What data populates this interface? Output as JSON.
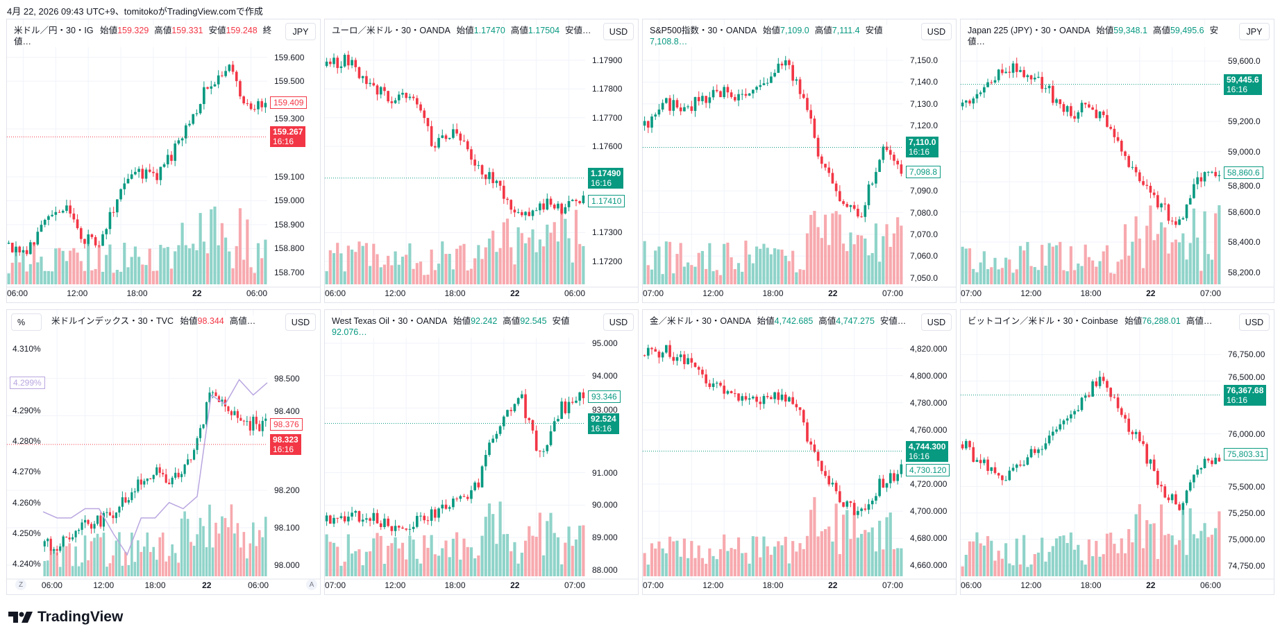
{
  "caption": "4月 22, 2026 09:43 UTC+9、tomitokoがTradingView.comで作成",
  "logo": "TradingView",
  "colors": {
    "up": "#089981",
    "down": "#f23645",
    "up_vol": "#8fd3c9",
    "down_vol": "#f7a9ae",
    "yield_line": "#b9a6e0",
    "grid": "#f0f3fa"
  },
  "panels": [
    {
      "title": "米ドル／円・30・IG",
      "fields": [
        [
          "始値",
          "159.329"
        ],
        [
          "高値",
          "159.331"
        ],
        [
          "安値",
          "159.248"
        ],
        [
          "終値…",
          ""
        ]
      ],
      "value_color": "#f23645",
      "currency": "JPY",
      "ticks": [
        "159.600",
        "159.500",
        "159.300",
        "159.100",
        "159.000",
        "158.900",
        "158.800",
        "158.700"
      ],
      "ylim": [
        158.65,
        159.66
      ],
      "times": [
        "06:00",
        "12:00",
        "18:00",
        "22",
        "06:00"
      ],
      "last": {
        "price": "159.267",
        "time": "16:16",
        "color": "#f23645"
      },
      "prev": {
        "price": "159.409",
        "color": "#f23645"
      },
      "trend": [
        158.82,
        158.78,
        158.95,
        158.98,
        158.85,
        158.8,
        159.05,
        159.12,
        159.1,
        159.2,
        159.35,
        159.5,
        159.55,
        159.38,
        159.4
      ]
    },
    {
      "title": "ユーロ／米ドル・30・OANDA",
      "fields": [
        [
          "始値",
          "1.17470"
        ],
        [
          "高値",
          "1.17504"
        ],
        [
          "安値…",
          ""
        ]
      ],
      "value_color": "#089981",
      "currency": "USD",
      "ticks": [
        "1.17900",
        "1.17800",
        "1.17700",
        "1.17600",
        "1.17300",
        "1.17200"
      ],
      "ylim": [
        1.1712,
        1.1796
      ],
      "times": [
        "06:00",
        "12:00",
        "18:00",
        "22",
        "06:00"
      ],
      "last": {
        "price": "1.17490",
        "time": "16:16",
        "color": "#089981"
      },
      "prev": {
        "price": "1.17410",
        "color": "#089981"
      },
      "trend": [
        1.1788,
        1.179,
        1.1782,
        1.1775,
        1.1778,
        1.176,
        1.1765,
        1.1755,
        1.1745,
        1.1735,
        1.174,
        1.1738,
        1.1741
      ]
    },
    {
      "title": "S&P500指数・30・OANDA",
      "fields": [
        [
          "始値",
          "7,109.0"
        ],
        [
          "高値",
          "7,111.4"
        ],
        [
          "安値",
          "7,108.8…"
        ]
      ],
      "value_color": "#089981",
      "currency": "USD",
      "ticks": [
        "7,150.0",
        "7,140.0",
        "7,130.0",
        "7,120.0",
        "7,090.0",
        "7,080.0",
        "7,070.0",
        "7,060.0",
        "7,050.0"
      ],
      "ylim": [
        7047,
        7158
      ],
      "times": [
        "07:00",
        "12:00",
        "18:00",
        "22",
        "07:00"
      ],
      "last": {
        "price": "7,110.0",
        "time": "16:16",
        "color": "#089981"
      },
      "prev": {
        "price": "7,098.8",
        "color": "#089981"
      },
      "trend": [
        7120,
        7130,
        7128,
        7132,
        7135,
        7134,
        7140,
        7150,
        7135,
        7100,
        7085,
        7080,
        7108,
        7099
      ]
    },
    {
      "title": "Japan 225 (JPY)・30・OANDA",
      "fields": [
        [
          "始値",
          "59,348.1"
        ],
        [
          "高値",
          "59,495.6"
        ],
        [
          "安値…",
          ""
        ]
      ],
      "value_color": "#089981",
      "currency": "JPY",
      "ticks": [
        "59,600.0",
        "59,200.0",
        "59,000.0",
        "58,800.0",
        "58,600.0",
        "58,400.0",
        "58,200.0"
      ],
      "ylim": [
        58120,
        59720
      ],
      "times": [
        "07:00",
        "12:00",
        "18:00",
        "22",
        "07:00"
      ],
      "last": {
        "price": "59,445.6",
        "time": "16:16",
        "color": "#089981"
      },
      "prev": {
        "price": "58,860.6",
        "color": "#089981"
      },
      "trend": [
        59300,
        59450,
        59550,
        59520,
        59400,
        59250,
        59300,
        59150,
        58850,
        58700,
        58500,
        58800,
        58860
      ]
    },
    {
      "title": "米ドルインデックス・30・TVC",
      "fields": [
        [
          "始値",
          "98.344"
        ],
        [
          "高値…",
          ""
        ]
      ],
      "value_color": "#f23645",
      "currency": "USD",
      "left_currency": "%",
      "ticks": [
        "98.500",
        "98.400",
        "98.200",
        "98.100",
        "98.000"
      ],
      "ylim": [
        97.97,
        98.62
      ],
      "left_ticks": [
        "4.310%",
        "4.290%",
        "4.280%",
        "4.270%",
        "4.260%",
        "4.250%",
        "4.240%"
      ],
      "left_ylim": [
        4.236,
        4.315
      ],
      "left_label": "4.299%",
      "left_trend": [
        4.257,
        4.255,
        4.255,
        4.258,
        4.258,
        4.25,
        4.243,
        4.255,
        4.255,
        4.26,
        4.258,
        4.262,
        4.295,
        4.292,
        4.3,
        4.295,
        4.299
      ],
      "za": [
        "Z",
        "A"
      ],
      "times": [
        "06:00",
        "12:00",
        "18:00",
        "22",
        "06:00"
      ],
      "last": {
        "price": "98.323",
        "time": "16:16",
        "color": "#f23645"
      },
      "prev": {
        "price": "98.376",
        "color": "#f23645"
      },
      "trend": [
        98.05,
        98.06,
        98.1,
        98.12,
        98.15,
        98.22,
        98.25,
        98.23,
        98.3,
        98.45,
        98.42,
        98.38,
        98.376
      ]
    },
    {
      "title": "West Texas Oil・30・OANDA",
      "fields": [
        [
          "始値",
          "92.242"
        ],
        [
          "高値",
          "92.545"
        ],
        [
          "安値",
          "92.076…"
        ]
      ],
      "value_color": "#089981",
      "currency": "USD",
      "ticks": [
        "95.000",
        "94.000",
        "93.000",
        "91.000",
        "90.000",
        "89.000",
        "88.000"
      ],
      "ylim": [
        87.8,
        95.3
      ],
      "times": [
        "07:00",
        "12:00",
        "18:00",
        "22",
        "07:00"
      ],
      "last": {
        "price": "92.524",
        "time": "16:16",
        "color": "#089981"
      },
      "prev": {
        "price": "93.346",
        "color": "#089981"
      },
      "trend": [
        89.5,
        89.6,
        89.7,
        89.3,
        89.5,
        89.8,
        90.2,
        90.5,
        92.5,
        93.5,
        91.5,
        93.0,
        93.35
      ]
    },
    {
      "title": "金／米ドル・30・OANDA",
      "fields": [
        [
          "始値",
          "4,742.685"
        ],
        [
          "高値",
          "4,747.275"
        ],
        [
          "安値…",
          ""
        ]
      ],
      "value_color": "#089981",
      "currency": "USD",
      "ticks": [
        "4,820.000",
        "4,800.000",
        "4,780.000",
        "4,760.000",
        "4,720.000",
        "4,700.000",
        "4,680.000",
        "4,660.000"
      ],
      "ylim": [
        4652,
        4831
      ],
      "times": [
        "07:00",
        "12:00",
        "18:00",
        "22",
        "07:00"
      ],
      "last": {
        "price": "4,744.300",
        "time": "16:16",
        "color": "#089981"
      },
      "prev": {
        "price": "4,730.120",
        "color": "#089981"
      },
      "trend": [
        4815,
        4818,
        4810,
        4795,
        4785,
        4783,
        4786,
        4780,
        4740,
        4710,
        4700,
        4720,
        4730
      ]
    },
    {
      "title": "ビットコイン／米ドル・30・Coinbase",
      "fields": [
        [
          "始値",
          "76,288.01"
        ],
        [
          "高値…",
          ""
        ]
      ],
      "value_color": "#089981",
      "currency": "USD",
      "ticks": [
        "76,750.00",
        "76,500.00",
        "76,000.00",
        "75,500.00",
        "75,250.00",
        "75,000.00",
        "74,750.00"
      ],
      "ylim": [
        74650,
        76950
      ],
      "times": [
        "06:00",
        "12:00",
        "18:00",
        "22",
        "06:00"
      ],
      "last": {
        "price": "76,367.68",
        "time": "16:16",
        "color": "#089981"
      },
      "prev": {
        "price": "75,803.31",
        "color": "#089981"
      },
      "trend": [
        75900,
        75700,
        75600,
        75700,
        75900,
        76100,
        76300,
        76550,
        76200,
        75900,
        75500,
        75300,
        75700,
        75803
      ]
    }
  ]
}
